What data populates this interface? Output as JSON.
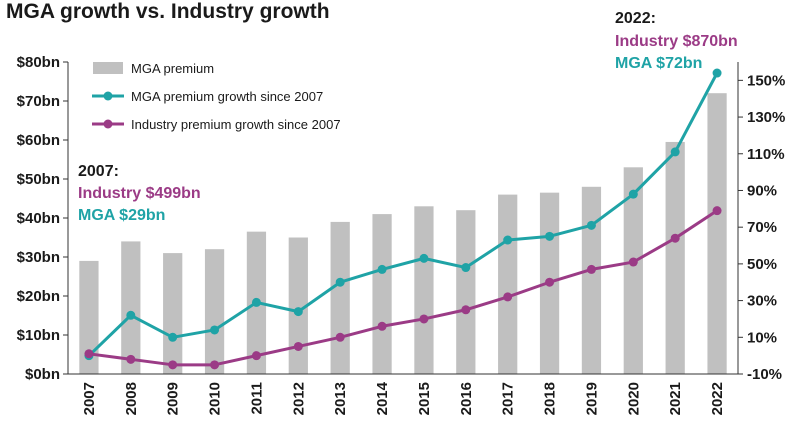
{
  "chart_data": {
    "type": "bar",
    "title": "MGA growth vs. Industry growth",
    "categories": [
      "2007",
      "2008",
      "2009",
      "2010",
      "2011",
      "2012",
      "2013",
      "2014",
      "2015",
      "2016",
      "2017",
      "2018",
      "2019",
      "2020",
      "2021",
      "2022"
    ],
    "series": [
      {
        "name": "MGA premium",
        "type": "bar",
        "axis": "left",
        "color": "#c0c0c0",
        "values": [
          29,
          34,
          31,
          32,
          36.5,
          35,
          39,
          41,
          43,
          42,
          46,
          46.5,
          48,
          53,
          59.5,
          72
        ]
      },
      {
        "name": "MGA premium growth since 2007",
        "type": "line",
        "axis": "right",
        "color": "#1fa3a6",
        "values": [
          0,
          22,
          10,
          14,
          29,
          24,
          40,
          47,
          53,
          48,
          63,
          65,
          71,
          88,
          111,
          154
        ]
      },
      {
        "name": "Industry premium growth since 2007",
        "type": "line",
        "axis": "right",
        "color": "#9b3b86",
        "values": [
          1,
          -2,
          -5,
          -5,
          0,
          5,
          10,
          16,
          20,
          25,
          32,
          40,
          47,
          51,
          64,
          79
        ]
      }
    ],
    "left_axis": {
      "ylim": [
        0,
        80
      ],
      "ticks": [
        0,
        10,
        20,
        30,
        40,
        50,
        60,
        70,
        80
      ],
      "tick_labels": [
        "$0bn",
        "$10bn",
        "$20bn",
        "$30bn",
        "$40bn",
        "$50bn",
        "$60bn",
        "$70bn",
        "$80bn"
      ]
    },
    "right_axis": {
      "ylim": [
        -10,
        160
      ],
      "ticks": [
        -10,
        10,
        30,
        50,
        70,
        90,
        110,
        130,
        150
      ],
      "tick_labels": [
        "-10%",
        "10%",
        "30%",
        "50%",
        "70%",
        "90%",
        "110%",
        "130%",
        "150%"
      ]
    },
    "legend_position": "top-left",
    "grid": false,
    "annotations": {
      "start": {
        "year": "2007:",
        "industry": "Industry $499bn",
        "mga": "MGA $29bn"
      },
      "end": {
        "year": "2022:",
        "industry": "Industry $870bn",
        "mga": "MGA $72bn"
      }
    }
  }
}
